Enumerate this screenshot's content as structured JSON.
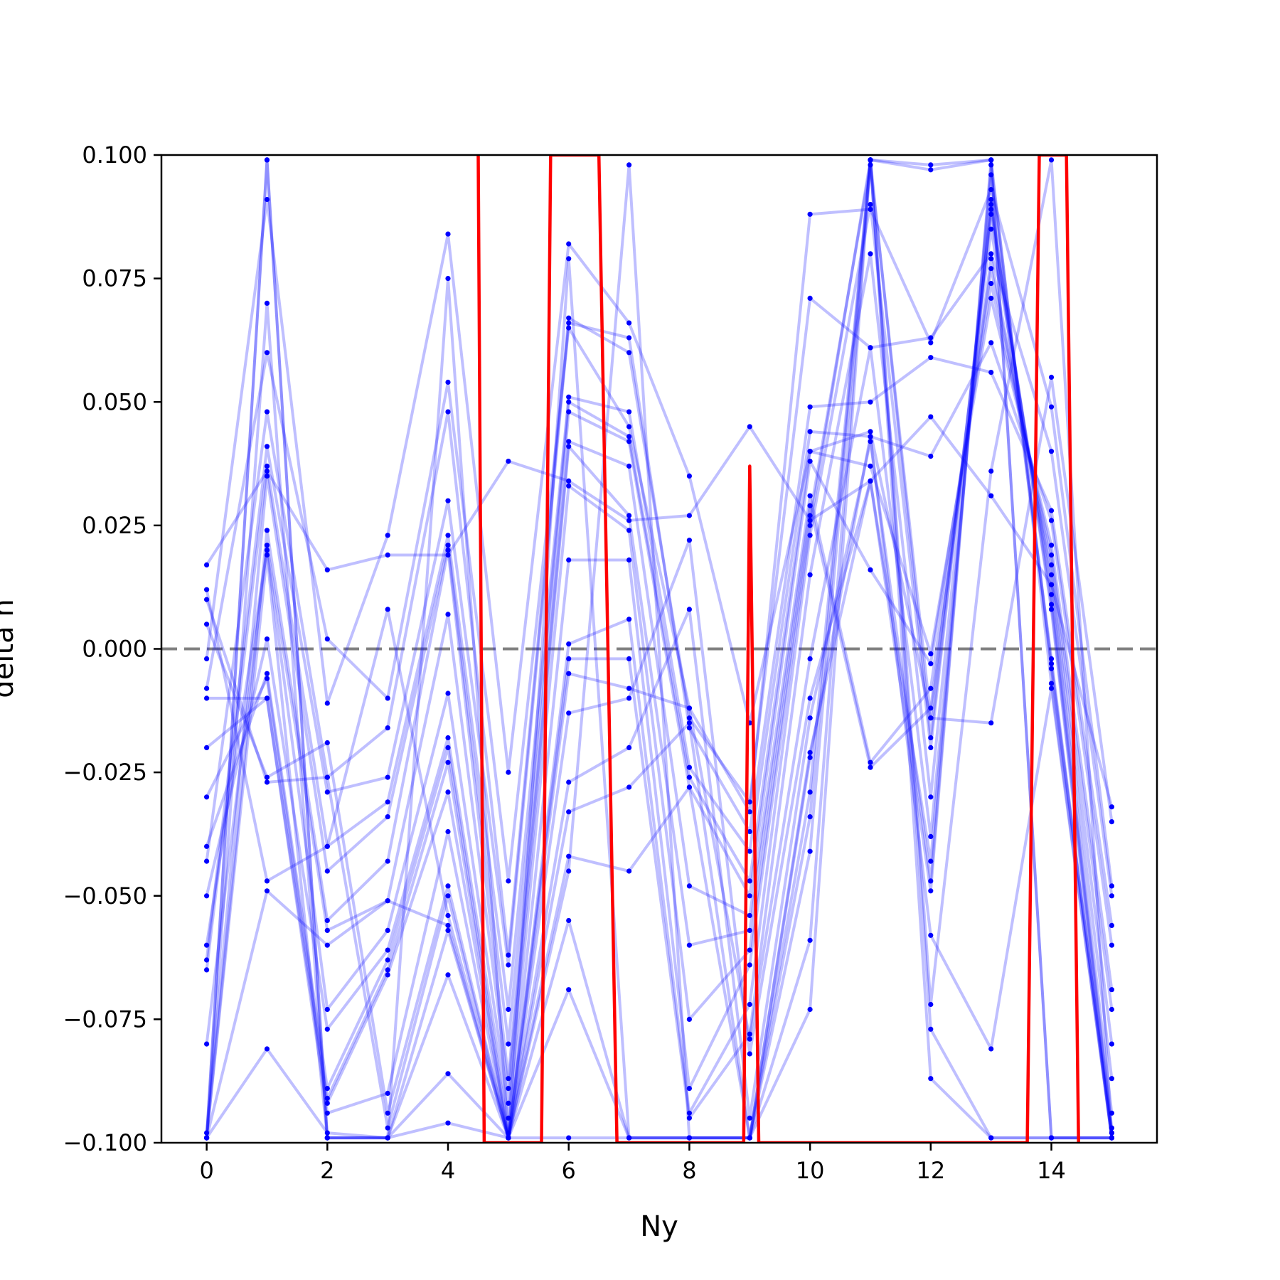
{
  "chart_data": {
    "type": "line",
    "title": "",
    "xlabel": "Ny",
    "ylabel": "delta n",
    "xlim": [
      -0.75,
      15.75
    ],
    "ylim": [
      -0.1,
      0.1
    ],
    "xticks": [
      "0",
      "2",
      "4",
      "6",
      "8",
      "10",
      "12",
      "14"
    ],
    "yticks": [
      "0.100",
      "0.075",
      "0.050",
      "0.025",
      "0.000",
      "−0.025",
      "−0.050",
      "−0.075",
      "−0.100"
    ],
    "grid": false,
    "legend": "none",
    "reference_line": {
      "y": 0.0,
      "style": "dashed",
      "color": "#808080"
    },
    "colors": {
      "blue": "#0000ff",
      "red": "#ff0000"
    },
    "x": [
      0,
      1,
      2,
      3,
      4,
      5,
      6,
      7,
      8,
      9,
      10,
      11,
      12,
      13,
      14,
      15
    ],
    "blue_series": [
      [
        0.017,
        0.036,
        0.016,
        0.019,
        0.019,
        0.038,
        0.034,
        0.026,
        0.027,
        0.045,
        0.026,
        0.034,
        0.047,
        0.031,
        0.013,
        -0.032
      ],
      [
        -0.002,
        0.091,
        -0.011,
        0.023,
        0.084,
        -0.025,
        0.082,
        0.066,
        0.035,
        -0.015,
        0.04,
        0.044,
        -0.014,
        -0.015,
        0.055,
        -0.035
      ],
      [
        -0.008,
        0.06,
        0.002,
        -0.01,
        0.054,
        -0.047,
        0.065,
        0.045,
        -0.012,
        -0.033,
        0.088,
        0.089,
        0.062,
        0.093,
        0.049,
        -0.048
      ],
      [
        -0.043,
        0.048,
        -0.026,
        -0.016,
        0.048,
        -0.062,
        0.067,
        0.06,
        -0.014,
        -0.031,
        0.071,
        0.061,
        0.063,
        0.08,
        0.04,
        -0.05
      ],
      [
        -0.063,
        0.041,
        -0.029,
        -0.026,
        0.03,
        -0.064,
        0.066,
        0.063,
        -0.016,
        -0.037,
        0.049,
        0.05,
        0.059,
        0.056,
        0.028,
        -0.056
      ],
      [
        -0.065,
        0.037,
        -0.04,
        -0.031,
        0.023,
        -0.073,
        0.051,
        0.048,
        -0.024,
        -0.041,
        0.044,
        0.043,
        0.039,
        0.062,
        0.026,
        -0.06
      ],
      [
        -0.098,
        0.035,
        -0.045,
        -0.034,
        0.021,
        -0.08,
        0.05,
        0.043,
        -0.026,
        -0.047,
        0.04,
        0.037,
        -0.001,
        0.071,
        0.021,
        -0.069
      ],
      [
        -0.099,
        0.024,
        -0.055,
        -0.043,
        0.02,
        -0.087,
        0.048,
        0.042,
        -0.028,
        -0.05,
        0.038,
        0.016,
        -0.003,
        0.074,
        0.019,
        -0.073
      ],
      [
        -0.08,
        0.021,
        -0.057,
        -0.051,
        0.007,
        -0.089,
        0.042,
        0.037,
        -0.048,
        -0.054,
        0.031,
        -0.023,
        -0.008,
        0.077,
        0.017,
        -0.08
      ],
      [
        -0.06,
        0.02,
        -0.073,
        -0.057,
        -0.009,
        -0.092,
        0.041,
        0.027,
        -0.06,
        -0.057,
        0.029,
        -0.024,
        -0.012,
        0.079,
        0.015,
        -0.087
      ],
      [
        -0.05,
        0.002,
        -0.077,
        -0.061,
        -0.018,
        -0.095,
        0.033,
        0.024,
        -0.075,
        -0.061,
        0.027,
        0.098,
        -0.014,
        0.085,
        0.013,
        -0.094
      ],
      [
        -0.04,
        -0.005,
        -0.089,
        -0.063,
        -0.02,
        -0.098,
        0.018,
        0.018,
        -0.089,
        -0.064,
        0.025,
        0.099,
        -0.018,
        0.088,
        0.011,
        -0.097
      ],
      [
        -0.03,
        -0.006,
        -0.091,
        -0.065,
        -0.023,
        -0.099,
        0.001,
        0.006,
        -0.094,
        -0.072,
        0.023,
        0.09,
        -0.02,
        0.089,
        0.009,
        -0.098
      ],
      [
        -0.02,
        -0.01,
        -0.092,
        -0.066,
        -0.029,
        -0.099,
        -0.002,
        -0.002,
        -0.095,
        -0.078,
        0.015,
        0.08,
        -0.03,
        0.09,
        0.008,
        -0.099
      ],
      [
        -0.01,
        -0.01,
        -0.094,
        -0.09,
        -0.037,
        -0.099,
        -0.005,
        -0.008,
        -0.012,
        -0.079,
        -0.002,
        0.061,
        -0.038,
        0.091,
        -0.002,
        -0.099
      ],
      [
        0.005,
        -0.026,
        -0.019,
        -0.094,
        -0.048,
        -0.099,
        -0.013,
        -0.01,
        0.022,
        -0.082,
        -0.01,
        0.034,
        -0.043,
        0.096,
        -0.003,
        -0.099
      ],
      [
        0.01,
        -0.027,
        -0.026,
        -0.097,
        -0.05,
        -0.099,
        -0.027,
        -0.02,
        0.008,
        -0.095,
        -0.014,
        0.042,
        -0.047,
        0.098,
        -0.004,
        -0.098
      ],
      [
        0.012,
        -0.047,
        -0.04,
        0.008,
        -0.054,
        -0.099,
        -0.033,
        -0.028,
        -0.015,
        -0.099,
        -0.021,
        0.034,
        -0.049,
        0.099,
        -0.007,
        -0.099
      ],
      [
        -0.099,
        -0.049,
        -0.06,
        -0.051,
        -0.056,
        -0.099,
        -0.042,
        -0.045,
        -0.028,
        -0.099,
        -0.022,
        0.043,
        -0.058,
        -0.081,
        -0.008,
        -0.099
      ],
      [
        -0.099,
        -0.081,
        -0.098,
        -0.099,
        -0.057,
        -0.099,
        -0.045,
        0.098,
        -0.099,
        -0.099,
        -0.029,
        0.099,
        -0.072,
        0.036,
        0.099,
        -0.099
      ],
      [
        -0.099,
        0.07,
        -0.099,
        -0.099,
        -0.066,
        -0.099,
        -0.055,
        -0.099,
        -0.099,
        -0.099,
        -0.034,
        0.099,
        -0.077,
        -0.099,
        -0.099,
        -0.099
      ],
      [
        -0.099,
        0.019,
        -0.099,
        -0.099,
        -0.086,
        -0.099,
        -0.069,
        -0.099,
        -0.099,
        -0.099,
        -0.041,
        0.099,
        -0.087,
        -0.099,
        -0.099,
        -0.099
      ],
      [
        -0.099,
        0.099,
        -0.099,
        -0.099,
        -0.096,
        -0.099,
        0.079,
        -0.099,
        -0.099,
        -0.099,
        -0.059,
        0.099,
        0.097,
        0.099,
        -0.099,
        -0.099
      ],
      [
        -0.099,
        0.099,
        -0.099,
        -0.099,
        0.075,
        -0.099,
        -0.099,
        -0.099,
        -0.099,
        -0.099,
        -0.073,
        0.099,
        0.098,
        0.099,
        -0.099,
        -0.099
      ]
    ],
    "red_line": {
      "x": [
        4.5,
        4.6,
        5.55,
        5.7,
        6.5,
        6.8,
        8.9,
        9.0,
        9.15,
        13.6,
        13.8,
        14.25,
        14.45
      ],
      "y": [
        0.1,
        -0.1,
        -0.1,
        0.1,
        0.1,
        -0.1,
        -0.1,
        0.037,
        -0.1,
        -0.1,
        0.1,
        0.1,
        -0.1
      ]
    }
  }
}
